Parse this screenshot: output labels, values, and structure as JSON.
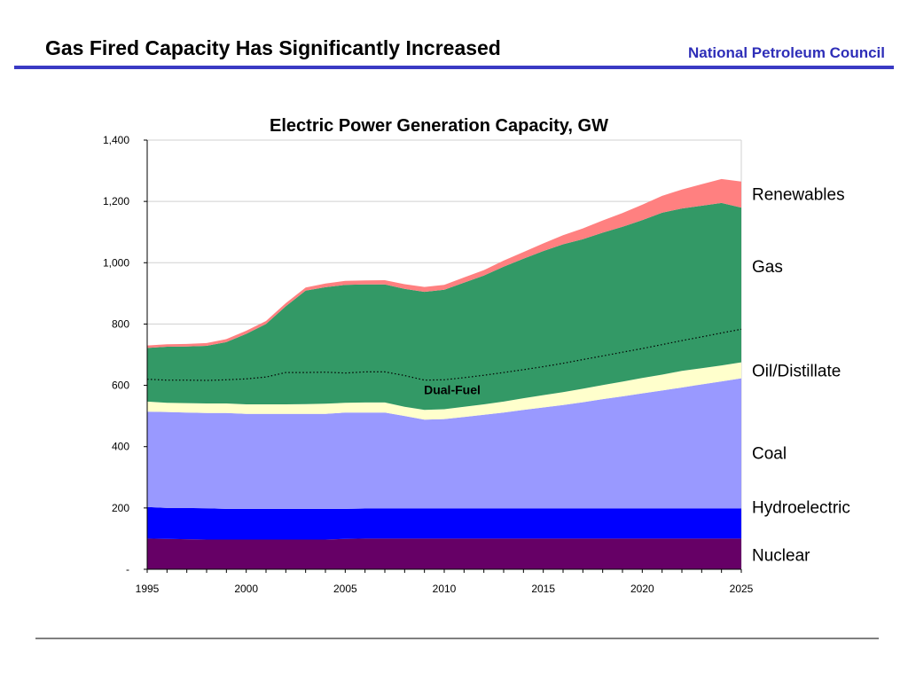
{
  "header": {
    "title": "Gas Fired Capacity Has Significantly Increased",
    "organization": "National Petroleum Council"
  },
  "colors": {
    "header_rule": "#3a3ac4",
    "organization": "#2e2eb8",
    "footer_rule": "#7f7f7f"
  },
  "chart_data": {
    "type": "area",
    "stacked": true,
    "title": "Electric Power Generation Capacity, GW",
    "xlabel": "",
    "ylabel": "",
    "x": [
      1995,
      1996,
      1997,
      1998,
      1999,
      2000,
      2001,
      2002,
      2003,
      2004,
      2005,
      2006,
      2007,
      2008,
      2009,
      2010,
      2011,
      2012,
      2013,
      2014,
      2015,
      2016,
      2017,
      2018,
      2019,
      2020,
      2021,
      2022,
      2023,
      2024,
      2025
    ],
    "xlim": [
      1995,
      2025
    ],
    "ylim": [
      0,
      1400
    ],
    "x_ticks": [
      1995,
      2000,
      2005,
      2010,
      2015,
      2020,
      2025
    ],
    "y_ticks": [
      0,
      200,
      400,
      600,
      800,
      1000,
      1200,
      1400
    ],
    "y_tick_labels": [
      "-",
      "200",
      "400",
      "600",
      "800",
      "1,000",
      "1,200",
      "1,400"
    ],
    "x_tick_labels": [
      "1995",
      "2000",
      "2005",
      "2010",
      "2015",
      "2020",
      "2025"
    ],
    "grid": "horizontal",
    "series": [
      {
        "name": "Nuclear",
        "color": "#660066",
        "values": [
          100,
          99,
          98,
          97,
          97,
          97,
          97,
          97,
          97,
          97,
          99,
          100,
          100,
          100,
          100,
          100,
          100,
          100,
          100,
          100,
          100,
          100,
          100,
          100,
          100,
          100,
          100,
          100,
          100,
          100,
          100
        ]
      },
      {
        "name": "Hydroelectric",
        "color": "#0000ff",
        "values": [
          103,
          101,
          102,
          102,
          100,
          100,
          100,
          100,
          100,
          100,
          98,
          98,
          98,
          98,
          98,
          98,
          98,
          98,
          98,
          98,
          98,
          98,
          98,
          98,
          98,
          98,
          98,
          98,
          98,
          98,
          98
        ]
      },
      {
        "name": "Coal",
        "color": "#9999ff",
        "values": [
          311,
          313,
          311,
          311,
          313,
          310,
          310,
          310,
          310,
          310,
          314,
          313,
          313,
          302,
          290,
          292,
          299,
          306,
          313,
          322,
          330,
          338,
          347,
          357,
          366,
          376,
          385,
          395,
          405,
          415,
          425
        ]
      },
      {
        "name": "Oil/Distillate",
        "color": "#ffffcc",
        "values": [
          33,
          30,
          31,
          31,
          31,
          31,
          31,
          31,
          32,
          33,
          32,
          33,
          33,
          30,
          32,
          32,
          33,
          34,
          36,
          38,
          40,
          42,
          44,
          46,
          48,
          50,
          52,
          54,
          53,
          52,
          52
        ]
      },
      {
        "name": "Gas",
        "color": "#339966",
        "values": [
          175,
          183,
          185,
          188,
          200,
          230,
          262,
          320,
          370,
          380,
          385,
          385,
          385,
          385,
          385,
          390,
          405,
          420,
          440,
          455,
          470,
          482,
          488,
          497,
          505,
          515,
          528,
          530,
          530,
          530,
          505
        ]
      },
      {
        "name": "Renewables",
        "color": "#ff8080",
        "values": [
          8,
          8,
          8,
          9,
          10,
          10,
          10,
          10,
          10,
          12,
          13,
          13,
          14,
          15,
          16,
          16,
          17,
          18,
          20,
          22,
          25,
          30,
          35,
          40,
          45,
          50,
          55,
          62,
          70,
          78,
          85
        ]
      }
    ],
    "dual_fuel": {
      "name": "Dual-Fuel",
      "style": "dotted",
      "values": [
        620,
        617,
        617,
        616,
        618,
        621,
        627,
        642,
        642,
        643,
        640,
        644,
        644,
        632,
        617,
        618,
        625,
        633,
        642,
        651,
        661,
        672,
        684,
        696,
        708,
        720,
        733,
        746,
        758,
        771,
        783
      ]
    }
  }
}
